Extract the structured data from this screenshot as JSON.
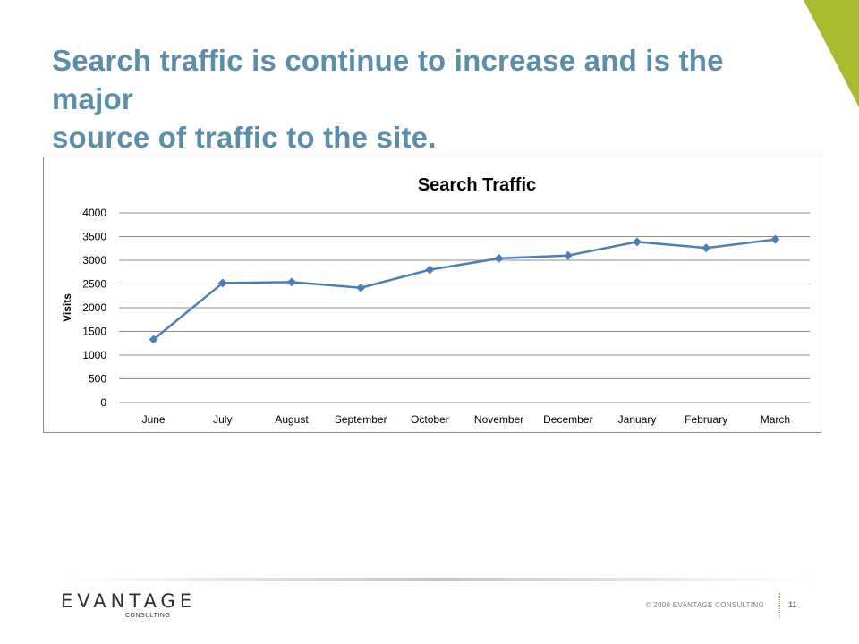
{
  "slide": {
    "title_lines": [
      "Search traffic is continue to increase and is the major",
      "source of traffic to the site."
    ],
    "accent_color": "#a8ba2e",
    "title_color": "#5b8ea8"
  },
  "footer": {
    "logo_word": "EVANTAGE",
    "logo_sub": "CONSULTING",
    "copyright": "© 2009 EVANTAGE CONSULTING",
    "page_number": "11"
  },
  "chart_data": {
    "type": "line",
    "title": "Search Traffic",
    "xlabel": "",
    "ylabel": "Visits",
    "categories": [
      "June",
      "July",
      "August",
      "September",
      "October",
      "November",
      "December",
      "January",
      "February",
      "March"
    ],
    "series": [
      {
        "values": [
          1330,
          2520,
          2540,
          2420,
          2800,
          3040,
          3100,
          3390,
          3260,
          3440
        ],
        "color": "#4a7ebb",
        "marker": "diamond"
      }
    ],
    "ylim": [
      0,
      4000
    ],
    "yticks": [
      0,
      500,
      1000,
      1500,
      2000,
      2500,
      3000,
      3500,
      4000
    ],
    "grid": "horizontal",
    "legend": "none"
  }
}
